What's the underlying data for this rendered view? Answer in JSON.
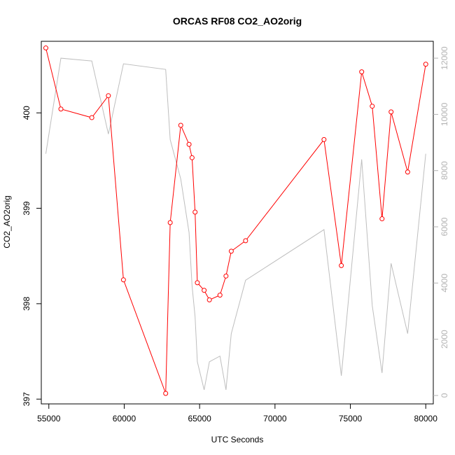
{
  "chart_data": {
    "type": "line",
    "title": "ORCAS RF08 CO2_AO2orig",
    "xlabel": "UTC Seconds",
    "ylabel": "CO2_AO2orig",
    "xlim": [
      54500,
      80500
    ],
    "ylim": [
      396.95,
      400.75
    ],
    "y2lim": [
      -300,
      12600
    ],
    "x_ticks": [
      55000,
      60000,
      65000,
      70000,
      75000,
      80000
    ],
    "x_tick_labels": [
      "55000",
      "60000",
      "65000",
      "70000",
      "75000",
      "80000"
    ],
    "y_ticks": [
      397,
      398,
      399,
      400
    ],
    "y_tick_labels": [
      "397",
      "398",
      "399",
      "400"
    ],
    "y2_ticks": [
      0,
      2000,
      4000,
      6000,
      8000,
      10000,
      12000
    ],
    "y2_tick_labels": [
      "0",
      "2000",
      "4000",
      "6000",
      "8000",
      "10000",
      "12000"
    ],
    "grid": false,
    "legend": "none",
    "series": [
      {
        "axis": "left",
        "color": "#ff0000",
        "marker": "open-circle",
        "x": [
          54800,
          55800,
          57850,
          58950,
          59950,
          62750,
          63050,
          63750,
          64300,
          64500,
          64700,
          64850,
          65300,
          65650,
          66350,
          66750,
          67100,
          68050,
          73250,
          74400,
          75750,
          76450,
          77100,
          77700,
          78800,
          80000
        ],
        "values": [
          400.68,
          400.04,
          399.95,
          400.18,
          398.25,
          397.06,
          398.85,
          399.87,
          399.67,
          399.53,
          398.96,
          398.22,
          398.14,
          398.04,
          398.09,
          398.29,
          398.55,
          398.66,
          399.72,
          398.4,
          400.43,
          400.07,
          398.89,
          400.01,
          399.38,
          400.51
        ]
      },
      {
        "axis": "right",
        "color": "#bebebe",
        "marker": "none",
        "x": [
          54800,
          55800,
          57850,
          58950,
          59950,
          62750,
          63050,
          63750,
          64300,
          64500,
          64700,
          64850,
          65300,
          65650,
          66350,
          66750,
          67100,
          68050,
          73250,
          74400,
          75750,
          76450,
          77100,
          77700,
          78800,
          80000
        ],
        "values": [
          8600,
          12000,
          11900,
          9300,
          11800,
          11600,
          9100,
          7700,
          5800,
          3900,
          2800,
          1200,
          200,
          1200,
          1400,
          200,
          2200,
          4100,
          5900,
          700,
          8400,
          3200,
          800,
          4700,
          2200,
          8600
        ]
      }
    ]
  }
}
